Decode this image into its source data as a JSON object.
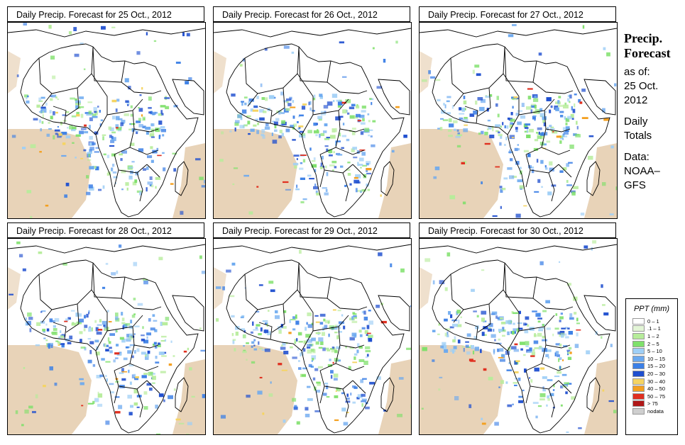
{
  "panels": [
    {
      "title": "Daily Precip. Forecast for  25 Oct., 2012",
      "seed": 11
    },
    {
      "title": "Daily Precip. Forecast for  26 Oct., 2012",
      "seed": 23
    },
    {
      "title": "Daily Precip. Forecast for  27 Oct., 2012",
      "seed": 37
    },
    {
      "title": "Daily Precip. Forecast for  28 Oct., 2012",
      "seed": 41
    },
    {
      "title": "Daily Precip. Forecast for  29 Oct., 2012",
      "seed": 53
    },
    {
      "title": "Daily Precip. Forecast for  30 Oct., 2012",
      "seed": 67
    }
  ],
  "info": {
    "heading_line1": "Precip.",
    "heading_line2": "Forecast",
    "asof_line1": "as of:",
    "asof_line2": "25 Oct.",
    "asof_line3": "2012",
    "daily_line1": "Daily",
    "daily_line2": "Totals",
    "data_line1": "Data:",
    "data_line2": "NOAA–",
    "data_line3": "GFS"
  },
  "legend": {
    "title": "PPT (mm)",
    "items": [
      {
        "label": "0 – 1",
        "color": "#ffffff"
      },
      {
        "label": ".1 – 1",
        "color": "#e3f5d6"
      },
      {
        "label": "1 – 2",
        "color": "#b6ec9a"
      },
      {
        "label": "2 – 5",
        "color": "#7fe06b"
      },
      {
        "label": "5 – 10",
        "color": "#9fcff6"
      },
      {
        "label": "10 – 15",
        "color": "#6aa8ef"
      },
      {
        "label": "15 – 20",
        "color": "#3b7fe6"
      },
      {
        "label": "20 – 30",
        "color": "#1f4fcf"
      },
      {
        "label": "30 – 40",
        "color": "#f5d462"
      },
      {
        "label": "40 – 50",
        "color": "#f4a020"
      },
      {
        "label": "50 – 75",
        "color": "#e03020"
      },
      {
        "label": "> 75",
        "color": "#b01818"
      },
      {
        "label": "nodata",
        "color": "#cfcfcf"
      }
    ]
  },
  "colors": {
    "dry_ocean": "#e8d3b8",
    "map_line": "#000000"
  }
}
